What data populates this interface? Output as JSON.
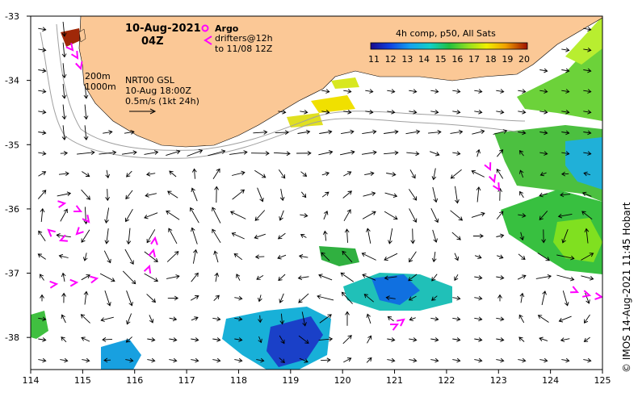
{
  "map": {
    "date": "10-Aug-2021",
    "time": "04Z",
    "argo_label": "Argo",
    "drifters_line1": "drifters@12h",
    "drifters_line2": "to 11/08 12Z",
    "composite_title": "4h comp, p50, All Sats",
    "colorbar_ticks": [
      "11",
      "12",
      "13",
      "14",
      "15",
      "16",
      "17",
      "18",
      "19",
      "20"
    ],
    "depth_200": "200m",
    "depth_1000": "1000m",
    "product_line1": "NRT00 GSL",
    "product_line2": "10-Aug 18:00Z",
    "product_line3": "0.5m/s (1kt 24h)",
    "credit": "© IMOS 14-Aug-2021 11:45 Hobart",
    "lon_ticks": [
      "114",
      "115",
      "116",
      "117",
      "118",
      "119",
      "120",
      "121",
      "122",
      "123",
      "124",
      "125"
    ],
    "lat_ticks": [
      "-33",
      "-34",
      "-35",
      "-36",
      "-37",
      "-38"
    ],
    "lon_range": [
      114,
      125
    ],
    "lat_range": [
      -38.5,
      -33
    ],
    "colors": {
      "land": "#fbc896",
      "argo": "#ff00ff",
      "drifter": "#ff00ff",
      "isobath": "#a0a0a0",
      "arrow": "#000000"
    }
  }
}
